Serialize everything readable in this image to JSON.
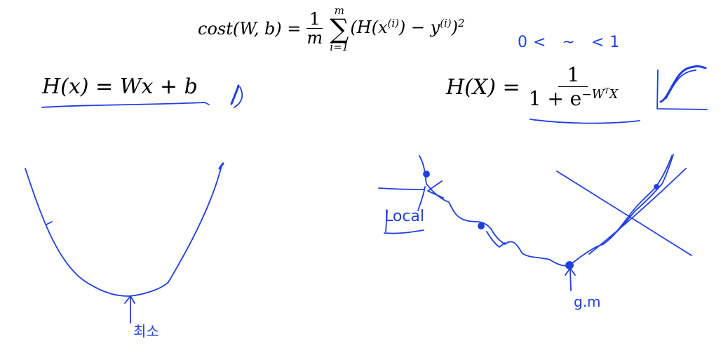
{
  "equations": {
    "cost": {
      "lhs": "cost(W, b) =",
      "frac_num": "1",
      "frac_den": "m",
      "sum_top": "m",
      "sum_sym": "∑",
      "sum_bottom": "i=1",
      "body": "(H(x",
      "sup1": "(i)",
      "mid": ") − y",
      "sup2": "(i)",
      "close": ")",
      "sup3": "2"
    },
    "linear": {
      "text": "H(x) = Wx + b"
    },
    "sigmoid": {
      "lhs": "H(X) =",
      "num": "1",
      "den_base": "1 + e",
      "den_exp": "−W",
      "den_exp_sup": "T",
      "den_exp_tail": "X"
    }
  },
  "annotations": {
    "range": "0< ~ <1",
    "local": "Local",
    "gm": "g.m",
    "korean": "최소"
  },
  "colors": {
    "ink": "#1f3fe0",
    "text": "#000000"
  }
}
